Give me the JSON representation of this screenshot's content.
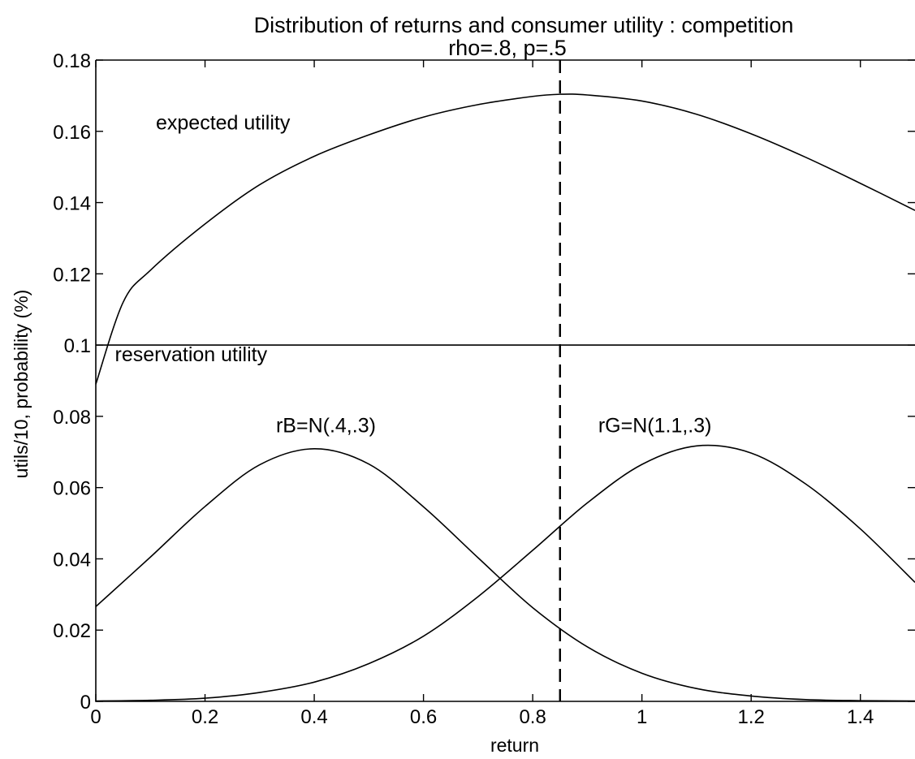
{
  "chart_data": {
    "type": "line",
    "title": "Distribution of returns and consumer utility : competition",
    "subtitle": "rho=.8, p=.5",
    "xlabel": "return",
    "ylabel": "utils/10, probability (%)",
    "xlim": [
      0,
      1.5
    ],
    "ylim": [
      0,
      0.18
    ],
    "x_ticks": [
      "0",
      "0.2",
      "0.4",
      "0.6",
      "0.8",
      "1",
      "1.2",
      "1.4"
    ],
    "y_ticks": [
      "0",
      "0.02",
      "0.04",
      "0.06",
      "0.08",
      "0.1",
      "0.12",
      "0.14",
      "0.16",
      "0.18"
    ],
    "grid": false,
    "series": [
      {
        "name": "expected utility",
        "x": [
          0,
          0.05,
          0.1,
          0.2,
          0.3,
          0.4,
          0.5,
          0.6,
          0.7,
          0.8,
          0.85,
          0.9,
          1.0,
          1.1,
          1.2,
          1.3,
          1.4,
          1.5
        ],
        "y": [
          0.089,
          0.112,
          0.121,
          0.134,
          0.145,
          0.153,
          0.159,
          0.164,
          0.1675,
          0.1698,
          0.1704,
          0.1702,
          0.1685,
          0.1648,
          0.1593,
          0.1527,
          0.1454,
          0.1378
        ]
      },
      {
        "name": "reservation utility",
        "x": [
          0,
          1.5
        ],
        "y": [
          0.1,
          0.1
        ]
      },
      {
        "name": "rB=N(.4,.3)",
        "x": [
          0,
          0.1,
          0.2,
          0.3,
          0.4,
          0.5,
          0.6,
          0.7,
          0.8,
          0.9,
          1.0,
          1.1,
          1.2,
          1.3,
          1.4,
          1.5
        ],
        "y": [
          0.0266,
          0.0405,
          0.0547,
          0.0664,
          0.0709,
          0.0666,
          0.0546,
          0.0403,
          0.0263,
          0.0153,
          0.0079,
          0.0036,
          0.0015,
          0.0005,
          0.0002,
          0.0001
        ]
      },
      {
        "name": "rG=N(1.1,.3)",
        "x": [
          0,
          0.1,
          0.2,
          0.3,
          0.4,
          0.5,
          0.6,
          0.7,
          0.8,
          0.9,
          1.0,
          1.1,
          1.2,
          1.3,
          1.4,
          1.5
        ],
        "y": [
          0.0001,
          0.0003,
          0.0009,
          0.0025,
          0.0054,
          0.0106,
          0.0183,
          0.0294,
          0.0424,
          0.0557,
          0.0665,
          0.0717,
          0.0697,
          0.061,
          0.0484,
          0.0334
        ]
      }
    ],
    "vline": {
      "x": 0.85,
      "style": "dashed"
    },
    "annotations": [
      {
        "text": "expected utility",
        "x": 0.11,
        "y": 0.1605
      },
      {
        "text": "reservation utility",
        "x": 0.035,
        "y": 0.0955
      },
      {
        "text": "rB=N(.4,.3)",
        "x": 0.33,
        "y": 0.0755
      },
      {
        "text": "rG=N(1.1,.3)",
        "x": 0.92,
        "y": 0.0755
      }
    ]
  }
}
